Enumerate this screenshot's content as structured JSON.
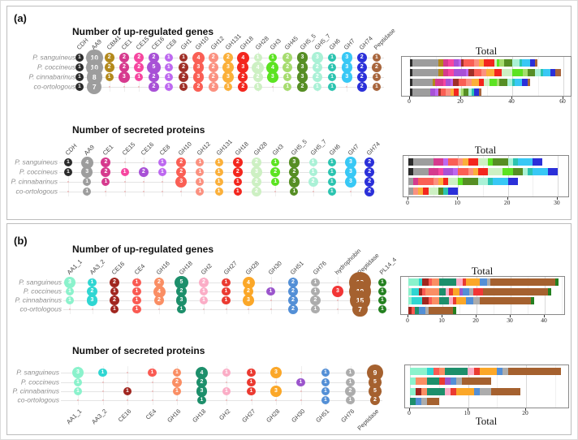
{
  "panels": [
    {
      "tag": "(a)"
    },
    {
      "tag": "(b)"
    }
  ],
  "chart_data": [
    {
      "id": "a-upregulated",
      "type": "bubble-matrix-with-stacked-bar-totals",
      "title": "Number of up-regulated genes",
      "rows": [
        "P. sanguineus",
        "P. coccineus",
        "P. cinnabarinus",
        "co-ortologous"
      ],
      "families": [
        {
          "name": "CDH",
          "color": "#2b2b2b",
          "values": [
            1,
            1,
            1,
            1
          ]
        },
        {
          "name": "AA9",
          "color": "#9d9d9d",
          "values": [
            10,
            10,
            8,
            7
          ]
        },
        {
          "name": "CBM1",
          "color": "#b3891c",
          "values": [
            2,
            2,
            1,
            0
          ]
        },
        {
          "name": "CE1",
          "color": "#d63a8e",
          "values": [
            2,
            2,
            3,
            0
          ]
        },
        {
          "name": "CE15",
          "color": "#f646a0",
          "values": [
            2,
            2,
            1,
            0
          ]
        },
        {
          "name": "CE16",
          "color": "#a851d6",
          "values": [
            2,
            5,
            2,
            2
          ]
        },
        {
          "name": "CE8",
          "color": "#bd68f0",
          "values": [
            1,
            1,
            1,
            1
          ]
        },
        {
          "name": "GH1",
          "color": "#a03028",
          "values": [
            1,
            2,
            2,
            1
          ]
        },
        {
          "name": "GH10",
          "color": "#fa5f55",
          "values": [
            4,
            3,
            3,
            2
          ]
        },
        {
          "name": "GH12",
          "color": "#fb9180",
          "values": [
            2,
            2,
            2,
            2
          ]
        },
        {
          "name": "GH131",
          "color": "#fbb03a",
          "values": [
            2,
            3,
            3,
            1
          ]
        },
        {
          "name": "GH18",
          "color": "#f3261e",
          "values": [
            4,
            3,
            2,
            2
          ]
        },
        {
          "name": "GH28",
          "color": "#cdf0c3",
          "values": [
            1,
            4,
            2,
            1
          ]
        },
        {
          "name": "GH3",
          "color": "#5ce322",
          "values": [
            1,
            4,
            3,
            0
          ]
        },
        {
          "name": "GH45",
          "color": "#a6dc6e",
          "values": [
            2,
            2,
            1,
            1
          ]
        },
        {
          "name": "GH5_5",
          "color": "#568e24",
          "values": [
            3,
            3,
            3,
            2
          ]
        },
        {
          "name": "GH5_7",
          "color": "#aaf1d6",
          "values": [
            3,
            2,
            2,
            1
          ]
        },
        {
          "name": "GH6",
          "color": "#2bc4b0",
          "values": [
            1,
            1,
            1,
            1
          ]
        },
        {
          "name": "GH7",
          "color": "#38c8f5",
          "values": [
            3,
            3,
            3,
            0
          ]
        },
        {
          "name": "GH74",
          "color": "#2b30d9",
          "values": [
            2,
            2,
            2,
            2
          ]
        },
        {
          "name": "Peptidase",
          "color": "#a8653c",
          "values": [
            1,
            2,
            1,
            1
          ]
        }
      ],
      "row_totals": [
        50,
        59,
        47,
        28
      ],
      "total_chart": {
        "title": "Total",
        "ticks": [
          0,
          20,
          40,
          60
        ],
        "legend": "none",
        "grid": "on"
      }
    },
    {
      "id": "a-secreted",
      "type": "bubble-matrix-with-stacked-bar-totals",
      "title": "Number of secreted proteins",
      "rows": [
        "P. sanguineus",
        "P. coccineus",
        "P. cinnabarinus",
        "co-ortologous"
      ],
      "families": [
        {
          "name": "CDH",
          "color": "#2b2b2b",
          "values": [
            1,
            1,
            0,
            0
          ]
        },
        {
          "name": "AA9",
          "color": "#9d9d9d",
          "values": [
            4,
            3,
            1,
            1
          ]
        },
        {
          "name": "CE1",
          "color": "#d63a8e",
          "values": [
            2,
            2,
            1,
            0
          ]
        },
        {
          "name": "CE15",
          "color": "#f646a0",
          "values": [
            0,
            1,
            0,
            0
          ]
        },
        {
          "name": "CE16",
          "color": "#a851d6",
          "values": [
            0,
            2,
            0,
            0
          ]
        },
        {
          "name": "CE8",
          "color": "#bd68f0",
          "values": [
            1,
            1,
            0,
            0
          ]
        },
        {
          "name": "GH10",
          "color": "#fa5f55",
          "values": [
            2,
            2,
            3,
            0
          ]
        },
        {
          "name": "GH12",
          "color": "#fb9180",
          "values": [
            1,
            1,
            1,
            1
          ]
        },
        {
          "name": "GH131",
          "color": "#fbb03a",
          "values": [
            1,
            1,
            1,
            1
          ]
        },
        {
          "name": "GH18",
          "color": "#f3261e",
          "values": [
            2,
            2,
            1,
            1
          ]
        },
        {
          "name": "GH28",
          "color": "#cdf0c3",
          "values": [
            2,
            3,
            2,
            2
          ]
        },
        {
          "name": "GH3",
          "color": "#5ce322",
          "values": [
            1,
            2,
            1,
            0
          ]
        },
        {
          "name": "GH5_5",
          "color": "#568e24",
          "values": [
            3,
            2,
            3,
            1
          ]
        },
        {
          "name": "GH5_7",
          "color": "#aaf1d6",
          "values": [
            1,
            1,
            2,
            0
          ]
        },
        {
          "name": "GH6",
          "color": "#2bc4b0",
          "values": [
            1,
            1,
            1,
            1
          ]
        },
        {
          "name": "GH7",
          "color": "#38c8f5",
          "values": [
            3,
            3,
            3,
            0
          ]
        },
        {
          "name": "GH74",
          "color": "#2b30d9",
          "values": [
            2,
            2,
            2,
            2
          ]
        }
      ],
      "row_totals": [
        27,
        30,
        22,
        10
      ],
      "total_chart": {
        "title": "Total",
        "ticks": [
          0,
          10,
          20,
          30
        ],
        "legend": "none",
        "grid": "on"
      }
    },
    {
      "id": "b-upregulated",
      "type": "bubble-matrix-with-stacked-bar-totals",
      "title": "Number of up-regulated genes",
      "rows": [
        "P. sanguineus",
        "P. coccineus",
        "P. cinnabarinus",
        "co-ortologous"
      ],
      "families": [
        {
          "name": "AA1_1",
          "color": "#8bf2cc",
          "values": [
            3,
            1,
            1,
            0
          ]
        },
        {
          "name": "AA3_2",
          "color": "#2fd6d2",
          "values": [
            1,
            2,
            3,
            0
          ]
        },
        {
          "name": "CE16",
          "color": "#a1261f",
          "values": [
            2,
            1,
            2,
            1
          ]
        },
        {
          "name": "CE4",
          "color": "#fa5a52",
          "values": [
            1,
            1,
            1,
            1
          ]
        },
        {
          "name": "GH16",
          "color": "#fa8e64",
          "values": [
            2,
            4,
            2,
            0
          ]
        },
        {
          "name": "GH18",
          "color": "#1d8f6b",
          "values": [
            5,
            2,
            3,
            1
          ]
        },
        {
          "name": "GH2",
          "color": "#fbadc6",
          "values": [
            2,
            1,
            1,
            0
          ]
        },
        {
          "name": "GH27",
          "color": "#eb3a31",
          "values": [
            1,
            1,
            1,
            0
          ]
        },
        {
          "name": "GH28",
          "color": "#fba728",
          "values": [
            4,
            2,
            3,
            0
          ]
        },
        {
          "name": "GH30",
          "color": "#9b55cc",
          "values": [
            0,
            1,
            0,
            0
          ]
        },
        {
          "name": "GH51",
          "color": "#538fd6",
          "values": [
            2,
            2,
            2,
            2
          ]
        },
        {
          "name": "GH76",
          "color": "#acacac",
          "values": [
            1,
            1,
            2,
            1
          ]
        },
        {
          "name": "hydrophobin",
          "color": "#f23636",
          "values": [
            0,
            3,
            0,
            0
          ]
        },
        {
          "name": "Peptidase",
          "color": "#a5612f",
          "values": [
            19,
            19,
            15,
            7
          ]
        },
        {
          "name": "PL14_4",
          "color": "#23801f",
          "values": [
            1,
            1,
            1,
            1
          ]
        }
      ],
      "row_totals": [
        44,
        42,
        37,
        14
      ],
      "total_chart": {
        "title": "Total",
        "ticks": [
          0,
          10,
          20,
          30,
          40
        ],
        "legend": "none",
        "grid": "on"
      }
    },
    {
      "id": "b-secreted",
      "type": "bubble-matrix-with-stacked-bar-totals",
      "title": "Number of secreted proteins",
      "rows": [
        "P. sanguineus",
        "P. coccineus",
        "P. cinnabarinus",
        "co-ortologous"
      ],
      "families": [
        {
          "name": "AA1_1",
          "color": "#8bf2cc",
          "values": [
            3,
            1,
            1,
            0
          ]
        },
        {
          "name": "AA3_2",
          "color": "#2fd6d2",
          "values": [
            1,
            0,
            0,
            0
          ]
        },
        {
          "name": "CE16",
          "color": "#a1261f",
          "values": [
            0,
            0,
            1,
            0
          ]
        },
        {
          "name": "CE4",
          "color": "#fa5a52",
          "values": [
            1,
            0,
            0,
            0
          ]
        },
        {
          "name": "GH16",
          "color": "#fa8e64",
          "values": [
            1,
            2,
            1,
            0
          ]
        },
        {
          "name": "GH18",
          "color": "#1d8f6b",
          "values": [
            4,
            2,
            3,
            1
          ]
        },
        {
          "name": "GH2",
          "color": "#fbadc6",
          "values": [
            1,
            0,
            1,
            0
          ]
        },
        {
          "name": "GH27",
          "color": "#eb3a31",
          "values": [
            1,
            1,
            1,
            0
          ]
        },
        {
          "name": "GH28",
          "color": "#fba728",
          "values": [
            3,
            0,
            3,
            0
          ]
        },
        {
          "name": "GH30",
          "color": "#9b55cc",
          "values": [
            0,
            1,
            0,
            0
          ]
        },
        {
          "name": "GH51",
          "color": "#538fd6",
          "values": [
            1,
            1,
            1,
            1
          ]
        },
        {
          "name": "GH76",
          "color": "#acacac",
          "values": [
            1,
            1,
            2,
            1
          ]
        },
        {
          "name": "Peptidase",
          "color": "#a5612f",
          "values": [
            9,
            5,
            5,
            2
          ]
        }
      ],
      "row_totals": [
        26,
        14,
        19,
        5
      ],
      "total_chart": {
        "title": "Total",
        "ticks": [
          0,
          10,
          20
        ],
        "legend": "none",
        "grid": "on"
      }
    }
  ]
}
